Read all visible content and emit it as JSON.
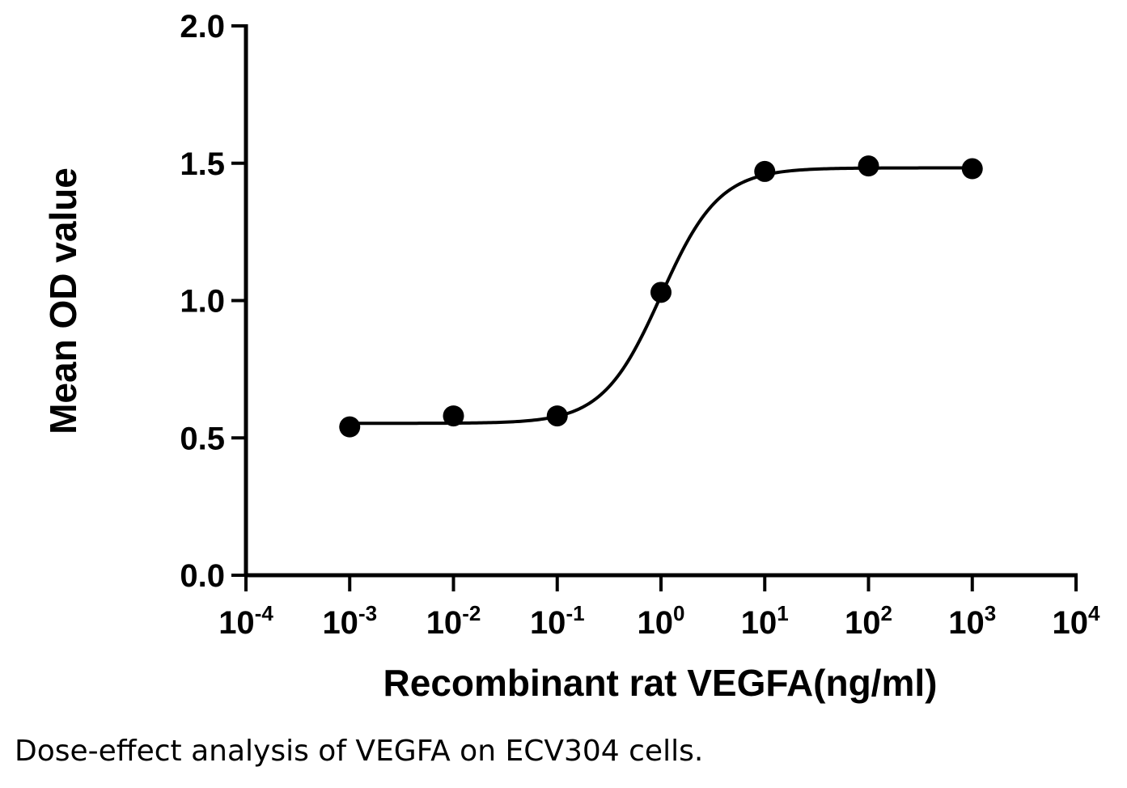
{
  "chart_data": {
    "type": "scatter",
    "xlabel": "Recombinant rat VEGFA(ng/ml)",
    "ylabel": "Mean OD value",
    "x_scale": "log10",
    "xlim": [
      0.0001,
      10000
    ],
    "ylim": [
      0.0,
      2.0
    ],
    "x_tick_labels": [
      {
        "base": "10",
        "exp": "-4"
      },
      {
        "base": "10",
        "exp": "-3"
      },
      {
        "base": "10",
        "exp": "-2"
      },
      {
        "base": "10",
        "exp": "-1"
      },
      {
        "base": "10",
        "exp": "0"
      },
      {
        "base": "10",
        "exp": "1"
      },
      {
        "base": "10",
        "exp": "2"
      },
      {
        "base": "10",
        "exp": "3"
      },
      {
        "base": "10",
        "exp": "4"
      }
    ],
    "y_ticks": [
      "0.0",
      "0.5",
      "1.0",
      "1.5",
      "2.0"
    ],
    "grid": false,
    "series": [
      {
        "x": [
          0.001,
          0.01,
          0.1,
          1,
          10,
          100,
          1000
        ],
        "y": [
          0.54,
          0.58,
          0.58,
          1.03,
          1.47,
          1.49,
          1.48
        ],
        "fit": "sigmoidal",
        "color": "#000000"
      }
    ]
  },
  "caption": "Dose-effect analysis of VEGFA on ECV304 cells."
}
